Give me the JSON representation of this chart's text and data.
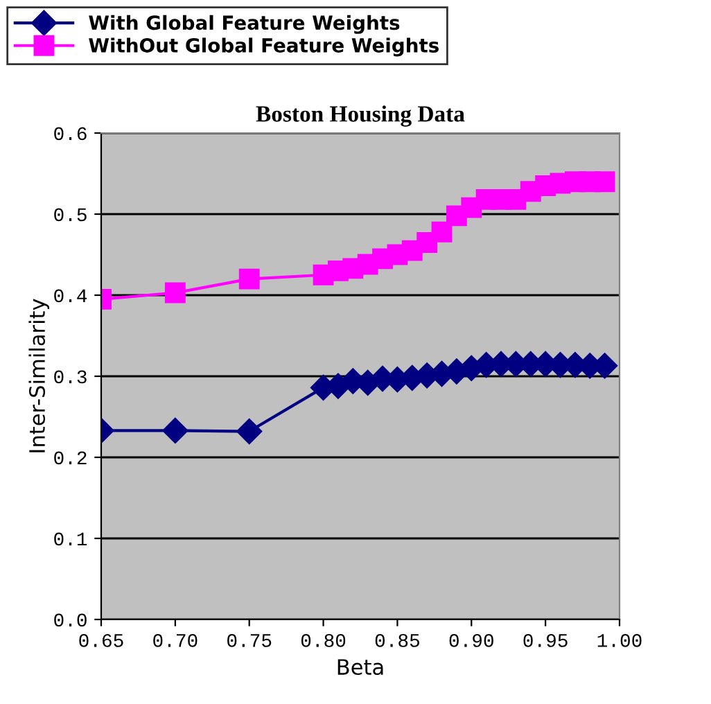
{
  "chart_data": {
    "type": "line",
    "title": "Boston Housing Data",
    "xlabel": "Beta",
    "ylabel": "Inter-Similarity",
    "x": [
      0.65,
      0.7,
      0.75,
      0.8,
      0.81,
      0.82,
      0.83,
      0.84,
      0.85,
      0.86,
      0.87,
      0.88,
      0.89,
      0.9,
      0.91,
      0.92,
      0.93,
      0.94,
      0.95,
      0.96,
      0.97,
      0.98,
      0.99
    ],
    "series": [
      {
        "name": "With Global Feature Weights",
        "color": "#000080",
        "marker": "diamond",
        "values": [
          0.233,
          0.233,
          0.232,
          0.286,
          0.288,
          0.294,
          0.292,
          0.297,
          0.296,
          0.298,
          0.301,
          0.303,
          0.306,
          0.31,
          0.314,
          0.315,
          0.315,
          0.315,
          0.315,
          0.314,
          0.314,
          0.313,
          0.313
        ]
      },
      {
        "name": "WithOut Global Feature Weights",
        "color": "#ff00ff",
        "marker": "square",
        "values": [
          0.395,
          0.403,
          0.42,
          0.425,
          0.43,
          0.433,
          0.438,
          0.445,
          0.45,
          0.455,
          0.465,
          0.478,
          0.498,
          0.508,
          0.518,
          0.518,
          0.518,
          0.528,
          0.535,
          0.538,
          0.54,
          0.54,
          0.54
        ]
      }
    ],
    "xlim": [
      0.65,
      1.0
    ],
    "xticks": [
      {
        "value": 0.65,
        "label": "0.65"
      },
      {
        "value": 0.7,
        "label": "0.70"
      },
      {
        "value": 0.75,
        "label": "0.75"
      },
      {
        "value": 0.8,
        "label": "0.80"
      },
      {
        "value": 0.85,
        "label": "0.85"
      },
      {
        "value": 0.9,
        "label": "0.90"
      },
      {
        "value": 0.95,
        "label": "0.95"
      },
      {
        "value": 1.0,
        "label": "1.00"
      }
    ],
    "ylim": [
      0.0,
      0.6
    ],
    "yticks": [
      {
        "value": 0.0,
        "label": "0.0"
      },
      {
        "value": 0.1,
        "label": "0.1"
      },
      {
        "value": 0.2,
        "label": "0.2"
      },
      {
        "value": 0.3,
        "label": "0.3"
      },
      {
        "value": 0.4,
        "label": "0.4"
      },
      {
        "value": 0.5,
        "label": "0.5"
      },
      {
        "value": 0.6,
        "label": "0.6"
      }
    ],
    "grid": "y",
    "legend": "top left",
    "line_style": "solid"
  }
}
